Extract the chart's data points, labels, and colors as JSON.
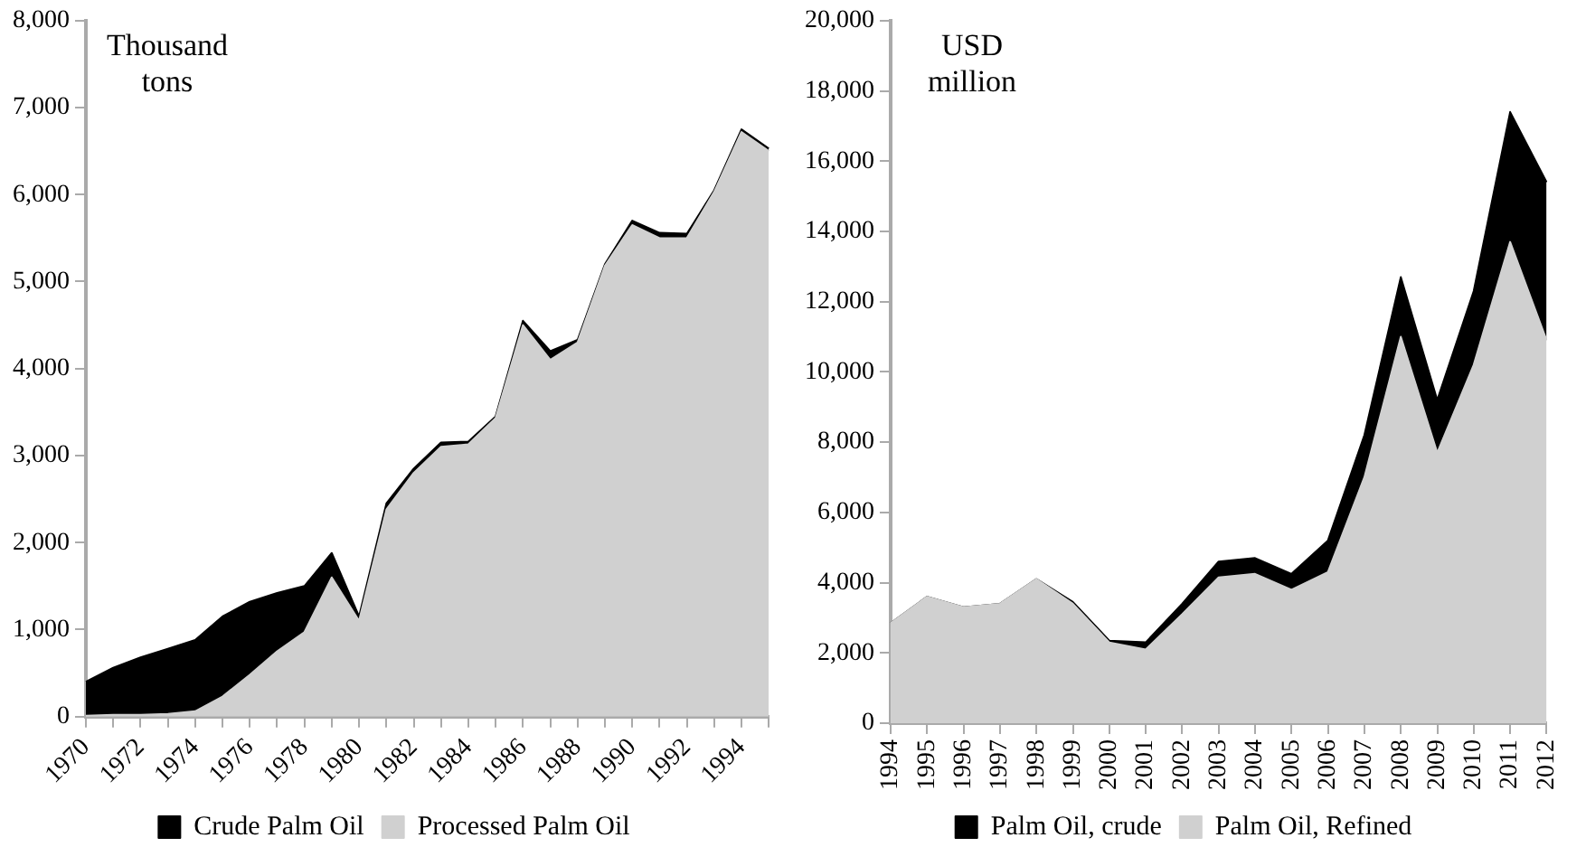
{
  "chart_data": [
    {
      "type": "area",
      "ylabel": "Thousand tons",
      "stacked": true,
      "legend": "bottom",
      "grid": false,
      "categories": [
        "1970",
        null,
        "1972",
        null,
        "1974",
        null,
        "1976",
        null,
        "1978",
        null,
        "1980",
        null,
        "1982",
        null,
        "1984",
        null,
        "1986",
        null,
        "1988",
        null,
        "1990",
        null,
        "1992",
        null,
        "1994",
        null
      ],
      "series": [
        {
          "name": "Processed Palm Oil",
          "color": "#d0d0d0",
          "values": [
            10,
            20,
            20,
            30,
            60,
            230,
            480,
            750,
            970,
            1600,
            1100,
            2380,
            2800,
            3100,
            3130,
            3430,
            4500,
            4100,
            4300,
            5180,
            5650,
            5500,
            5500,
            6030,
            6720,
            6500
          ]
        },
        {
          "name": "Crude Palm Oil",
          "color": "#000000",
          "values": [
            390,
            540,
            660,
            750,
            820,
            920,
            840,
            670,
            530,
            280,
            50,
            70,
            50,
            50,
            30,
            20,
            50,
            100,
            30,
            20,
            50,
            60,
            50,
            20,
            30,
            30
          ]
        }
      ],
      "ylim": [
        0,
        8000
      ],
      "yticks": [
        {
          "value": 0,
          "label": "0"
        },
        {
          "value": 1000,
          "label": "1,000"
        },
        {
          "value": 2000,
          "label": "2,000"
        },
        {
          "value": 3000,
          "label": "3,000"
        },
        {
          "value": 4000,
          "label": "4,000"
        },
        {
          "value": 5000,
          "label": "5,000"
        },
        {
          "value": 6000,
          "label": "6,000"
        },
        {
          "value": 7000,
          "label": "7,000"
        },
        {
          "value": 8000,
          "label": "8,000"
        }
      ]
    },
    {
      "type": "area",
      "ylabel": "USD million",
      "stacked": true,
      "legend": "bottom",
      "grid": false,
      "categories": [
        "1994",
        "1995",
        "1996",
        "1997",
        "1998",
        "1999",
        "2000",
        "2001",
        "2002",
        "2003",
        "2004",
        "2005",
        "2006",
        "2007",
        "2008",
        "2009",
        "2010",
        "2011",
        "2012"
      ],
      "series": [
        {
          "name": "Palm Oil, Refined",
          "color": "#d0d0d0",
          "values": [
            2850,
            3600,
            3300,
            3400,
            4100,
            3400,
            2300,
            2100,
            3100,
            4150,
            4250,
            3800,
            4300,
            7000,
            11000,
            7700,
            10200,
            13700,
            10900
          ]
        },
        {
          "name": "Palm Oil, crude",
          "color": "#000000",
          "values": [
            0,
            0,
            0,
            0,
            0,
            50,
            50,
            200,
            300,
            450,
            450,
            450,
            900,
            1200,
            1700,
            1500,
            2100,
            3700,
            4500
          ]
        }
      ],
      "ylim": [
        0,
        20000
      ],
      "yticks": [
        {
          "value": 0,
          "label": "0"
        },
        {
          "value": 2000,
          "label": "2,000"
        },
        {
          "value": 4000,
          "label": "4,000"
        },
        {
          "value": 6000,
          "label": "6,000"
        },
        {
          "value": 8000,
          "label": "8,000"
        },
        {
          "value": 10000,
          "label": "10,000"
        },
        {
          "value": 12000,
          "label": "12,000"
        },
        {
          "value": 14000,
          "label": "14,000"
        },
        {
          "value": 16000,
          "label": "16,000"
        },
        {
          "value": 18000,
          "label": "18,000"
        },
        {
          "value": 20000,
          "label": "20,000"
        }
      ]
    }
  ]
}
